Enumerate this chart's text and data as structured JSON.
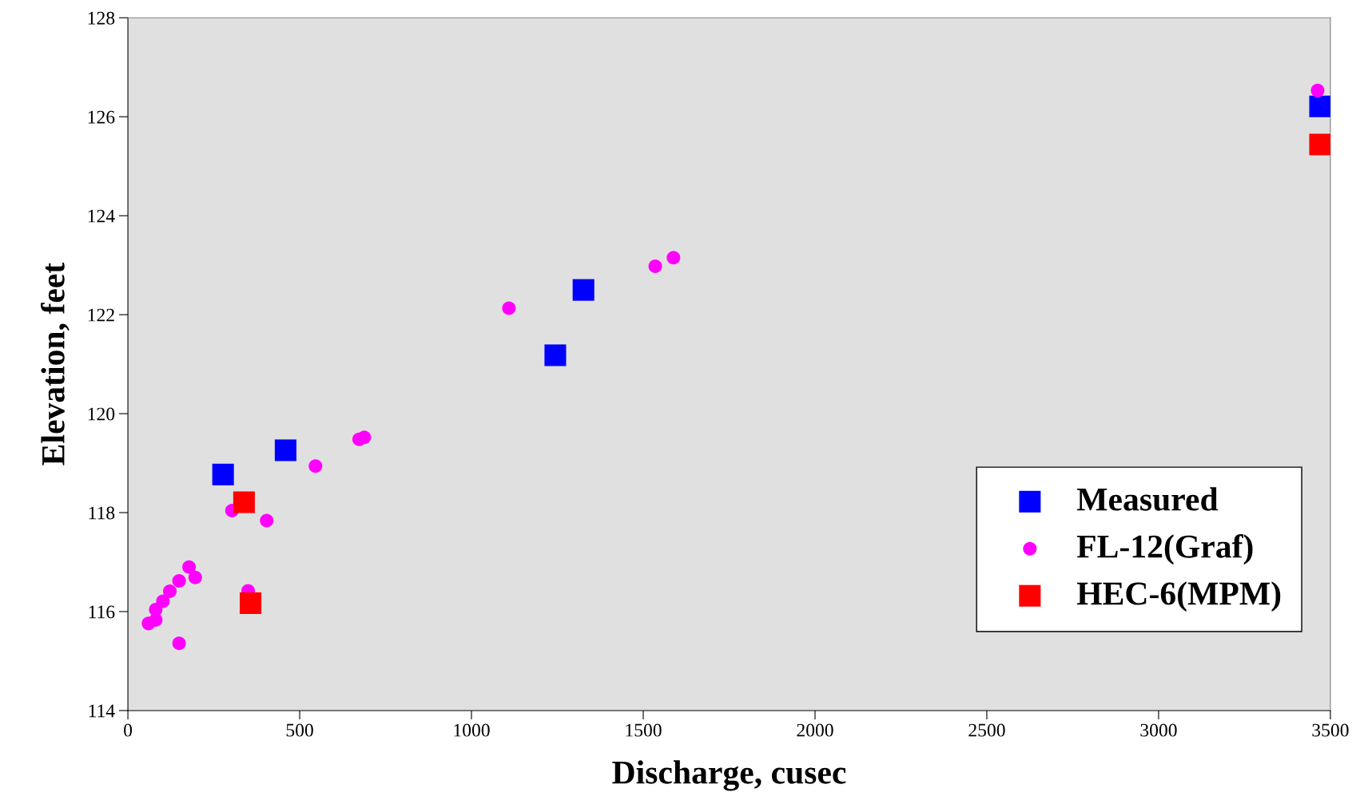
{
  "chart_data": {
    "type": "scatter",
    "xlabel": "Discharge, cusec",
    "ylabel": "Elevation, feet",
    "xlim": [
      0,
      3500
    ],
    "xticks": [
      0,
      500,
      1000,
      1500,
      2000,
      2500,
      3000,
      3500
    ],
    "ylim": [
      114,
      128
    ],
    "yticks": [
      114,
      116,
      118,
      120,
      122,
      124,
      126,
      128
    ],
    "grid": false,
    "legend": "bottom right",
    "series": [
      {
        "name": "Measured",
        "color": "#0000ff",
        "marker": "square",
        "x": [
          277,
          459,
          1244,
          1326,
          3470
        ],
        "values": [
          118.77,
          119.26,
          121.18,
          122.5,
          126.21
        ]
      },
      {
        "name": "FL-12(Graf)",
        "color": "#ff00ff",
        "marker": "circle",
        "x": [
          60,
          81,
          81,
          102,
          122,
          149,
          149,
          163,
          178,
          196,
          303,
          350,
          404,
          546,
          673,
          688,
          1109,
          1535,
          1588,
          3463
        ],
        "values": [
          115.76,
          115.83,
          116.04,
          116.21,
          116.41,
          116.62,
          115.36,
          null,
          116.9,
          116.69,
          118.04,
          116.42,
          117.84,
          118.94,
          119.48,
          119.52,
          122.13,
          122.98,
          123.15,
          126.53
        ]
      },
      {
        "name": "HEC-6(MPM)",
        "color": "#ff0000",
        "marker": "square",
        "x": [
          338,
          357,
          3470
        ],
        "values": [
          118.21,
          116.17,
          125.44
        ]
      }
    ]
  }
}
